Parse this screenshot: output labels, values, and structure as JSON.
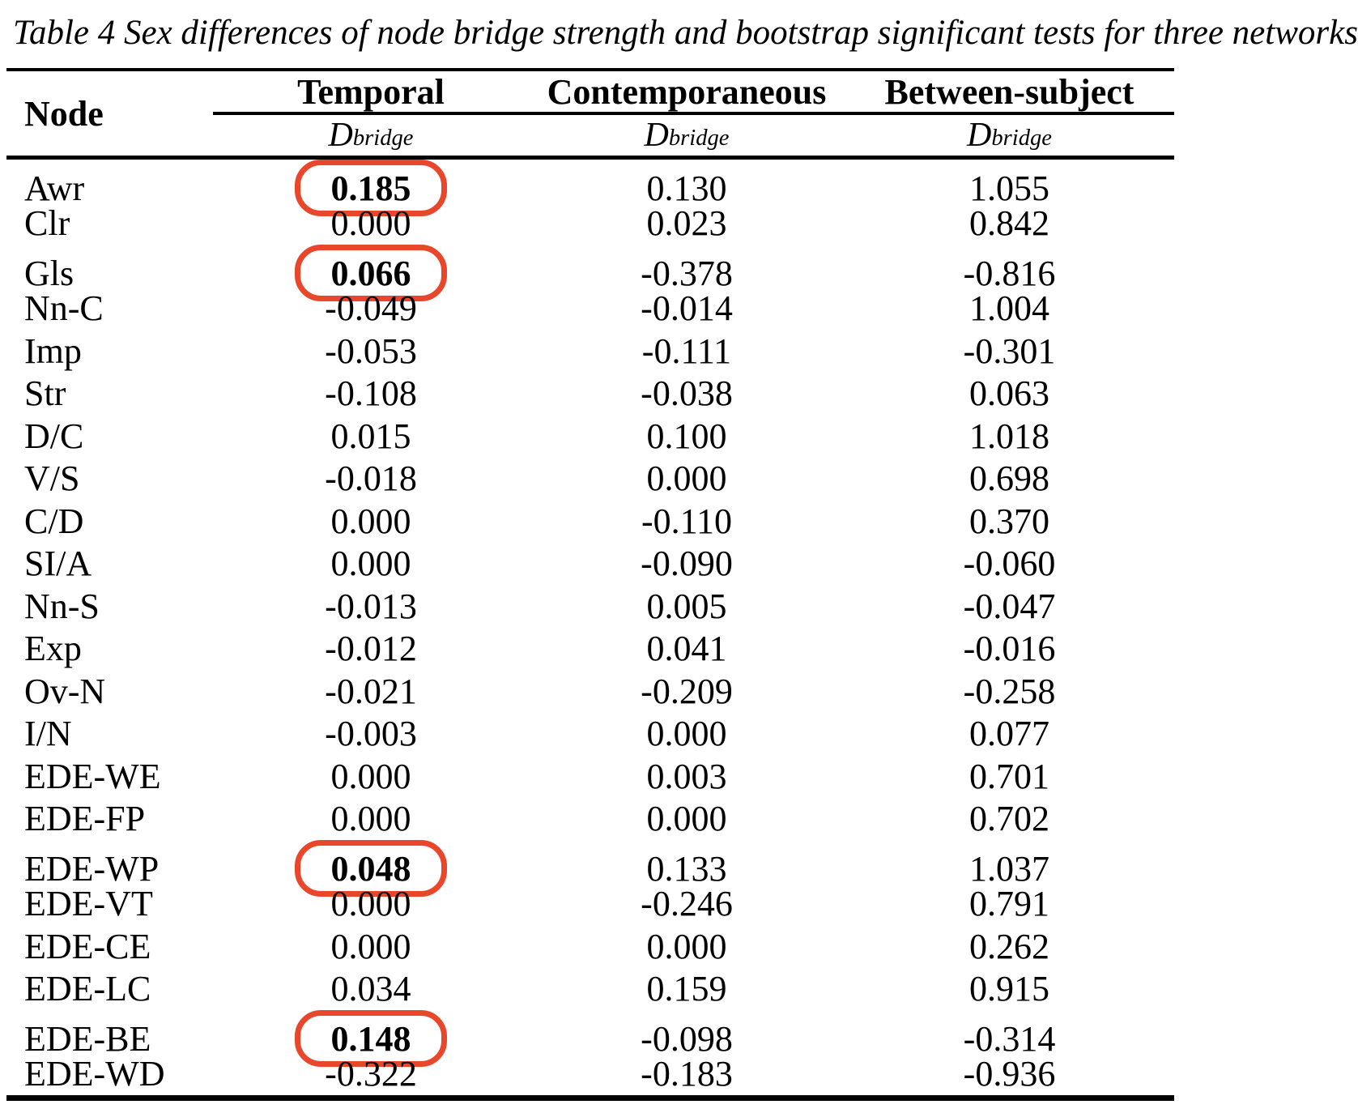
{
  "title": "Table 4 Sex differences of node bridge strength and bootstrap significant tests for three networks",
  "table": {
    "node_header": "Node",
    "group_headers": [
      "Temporal",
      "Contemporaneous",
      "Between-subject"
    ],
    "subheader": {
      "symbol": "D",
      "subscript": "bridge"
    },
    "highlight_color": "#e8472b",
    "rows": [
      {
        "node": "Awr",
        "values": [
          "0.185",
          "0.130",
          "1.055"
        ],
        "circled": [
          0
        ]
      },
      {
        "node": "Clr",
        "values": [
          "0.000",
          "0.023",
          "0.842"
        ],
        "circled": []
      },
      {
        "node": "Gls",
        "values": [
          "0.066",
          "-0.378",
          "-0.816"
        ],
        "circled": [
          0
        ]
      },
      {
        "node": "Nn-C",
        "values": [
          "-0.049",
          "-0.014",
          "1.004"
        ],
        "circled": []
      },
      {
        "node": "Imp",
        "values": [
          "-0.053",
          "-0.111",
          "-0.301"
        ],
        "circled": []
      },
      {
        "node": "Str",
        "values": [
          "-0.108",
          "-0.038",
          "0.063"
        ],
        "circled": []
      },
      {
        "node": "D/C",
        "values": [
          "0.015",
          "0.100",
          "1.018"
        ],
        "circled": []
      },
      {
        "node": "V/S",
        "values": [
          "-0.018",
          "0.000",
          "0.698"
        ],
        "circled": []
      },
      {
        "node": "C/D",
        "values": [
          "0.000",
          "-0.110",
          "0.370"
        ],
        "circled": []
      },
      {
        "node": "SI/A",
        "values": [
          "0.000",
          "-0.090",
          "-0.060"
        ],
        "circled": []
      },
      {
        "node": "Nn-S",
        "values": [
          "-0.013",
          "0.005",
          "-0.047"
        ],
        "circled": []
      },
      {
        "node": "Exp",
        "values": [
          "-0.012",
          "0.041",
          "-0.016"
        ],
        "circled": []
      },
      {
        "node": "Ov-N",
        "values": [
          "-0.021",
          "-0.209",
          "-0.258"
        ],
        "circled": []
      },
      {
        "node": "I/N",
        "values": [
          "-0.003",
          "0.000",
          "0.077"
        ],
        "circled": []
      },
      {
        "node": "EDE-WE",
        "values": [
          "0.000",
          "0.003",
          "0.701"
        ],
        "circled": []
      },
      {
        "node": "EDE-FP",
        "values": [
          "0.000",
          "0.000",
          "0.702"
        ],
        "circled": []
      },
      {
        "node": "EDE-WP",
        "values": [
          "0.048",
          "0.133",
          "1.037"
        ],
        "circled": [
          0
        ]
      },
      {
        "node": "EDE-VT",
        "values": [
          "0.000",
          "-0.246",
          "0.791"
        ],
        "circled": []
      },
      {
        "node": "EDE-CE",
        "values": [
          "0.000",
          "0.000",
          "0.262"
        ],
        "circled": []
      },
      {
        "node": "EDE-LC",
        "values": [
          "0.034",
          "0.159",
          "0.915"
        ],
        "circled": []
      },
      {
        "node": "EDE-BE",
        "values": [
          "0.148",
          "-0.098",
          "-0.314"
        ],
        "circled": [
          0
        ]
      },
      {
        "node": "EDE-WD",
        "values": [
          "-0.322",
          "-0.183",
          "-0.936"
        ],
        "circled": []
      }
    ]
  }
}
